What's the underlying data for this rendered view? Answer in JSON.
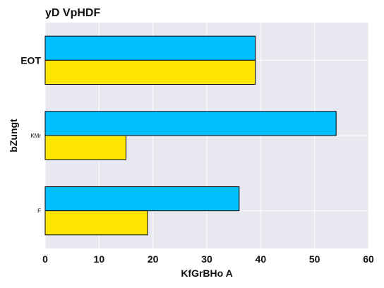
{
  "chart_data": {
    "type": "bar",
    "orientation": "horizontal",
    "title": "yD VpHDF",
    "xlabel": "KfGrBHo A",
    "ylabel": "bZungt",
    "categories": [
      "EOT",
      "KMr",
      "F"
    ],
    "category_label_sizes": [
      "large",
      "small",
      "small"
    ],
    "series": [
      {
        "color": "#00BFFF",
        "values": [
          39,
          54,
          36
        ]
      },
      {
        "color": "#FFE600",
        "values": [
          39,
          15,
          19
        ]
      }
    ],
    "xlim": [
      0,
      60
    ],
    "xticks": [
      0,
      10,
      20,
      30,
      40,
      50,
      60
    ],
    "grid": true,
    "legend": "none",
    "background": "#E8E8F0"
  }
}
